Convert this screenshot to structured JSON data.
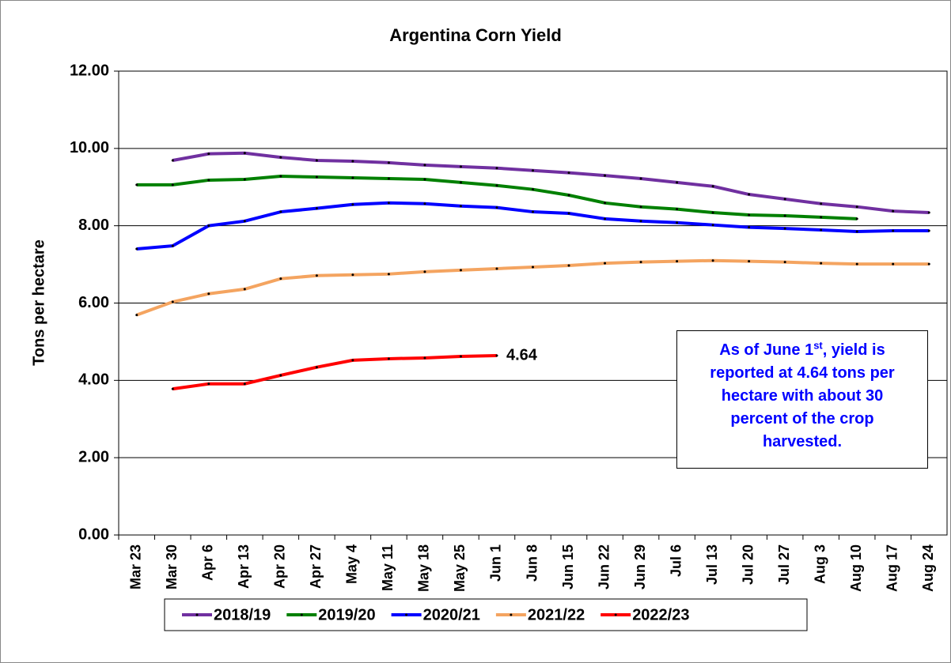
{
  "chart_data": {
    "type": "line",
    "title": "Argentina Corn Yield",
    "y_label": "Tons per hectare",
    "categories": [
      "Mar 23",
      "Mar 30",
      "Apr 6",
      "Apr 13",
      "Apr 20",
      "Apr 27",
      "May 4",
      "May 11",
      "May 18",
      "May 25",
      "Jun 1",
      "Jun 8",
      "Jun 15",
      "Jun 22",
      "Jun 29",
      "Jul 6",
      "Jul 13",
      "Jul 20",
      "Jul 27",
      "Aug 3",
      "Aug 10",
      "Aug 17",
      "Aug 24"
    ],
    "series": [
      {
        "name": "2018/19",
        "color": "#7030a0",
        "values": [
          null,
          9.69,
          9.86,
          9.88,
          9.77,
          9.69,
          9.67,
          9.63,
          9.57,
          9.53,
          9.49,
          9.43,
          9.37,
          9.3,
          9.22,
          9.12,
          9.02,
          8.81,
          8.69,
          8.57,
          8.49,
          8.38,
          8.34
        ]
      },
      {
        "name": "2019/20",
        "color": "#008000",
        "values": [
          9.06,
          9.06,
          9.18,
          9.2,
          9.28,
          9.26,
          9.24,
          9.22,
          9.2,
          9.12,
          9.04,
          8.94,
          8.79,
          8.59,
          8.49,
          8.43,
          8.34,
          8.28,
          8.26,
          8.22,
          8.18,
          null,
          null
        ]
      },
      {
        "name": "2020/21",
        "color": "#0000ff",
        "values": [
          7.4,
          7.48,
          8.0,
          8.12,
          8.36,
          8.45,
          8.55,
          8.59,
          8.57,
          8.51,
          8.47,
          8.36,
          8.32,
          8.18,
          8.12,
          8.08,
          8.02,
          7.96,
          7.93,
          7.89,
          7.85,
          7.87,
          7.87
        ]
      },
      {
        "name": "2021/22",
        "color": "#f4a460",
        "values": [
          5.69,
          6.03,
          6.24,
          6.36,
          6.63,
          6.71,
          6.73,
          6.75,
          6.81,
          6.85,
          6.89,
          6.93,
          6.97,
          7.03,
          7.06,
          7.08,
          7.1,
          7.08,
          7.06,
          7.03,
          7.01,
          7.01,
          7.01
        ]
      },
      {
        "name": "2022/23",
        "color": "#ff0000",
        "values": [
          null,
          3.78,
          3.91,
          3.91,
          4.13,
          4.34,
          4.52,
          4.56,
          4.58,
          4.62,
          4.64,
          null,
          null,
          null,
          null,
          null,
          null,
          null,
          null,
          null,
          null,
          null,
          null
        ],
        "value_labels": [
          null,
          null,
          null,
          null,
          null,
          null,
          null,
          null,
          null,
          null,
          "4.64",
          null,
          null,
          null,
          null,
          null,
          null,
          null,
          null,
          null,
          null,
          null,
          null
        ]
      }
    ],
    "ylim": [
      0,
      12
    ],
    "yticks": [
      {
        "value": 0,
        "label": "0.00"
      },
      {
        "value": 2,
        "label": "2.00"
      },
      {
        "value": 4,
        "label": "4.00"
      },
      {
        "value": 6,
        "label": "6.00"
      },
      {
        "value": 8,
        "label": "8.00"
      },
      {
        "value": 10,
        "label": "10.00"
      },
      {
        "value": 12,
        "label": "12.00"
      }
    ],
    "grid": true,
    "legend": "bottom",
    "annotation": [
      "As of June 1",
      "st",
      ", yield is reported at 4.64 tons per hectare with about 30 percent of the crop harvested."
    ]
  }
}
